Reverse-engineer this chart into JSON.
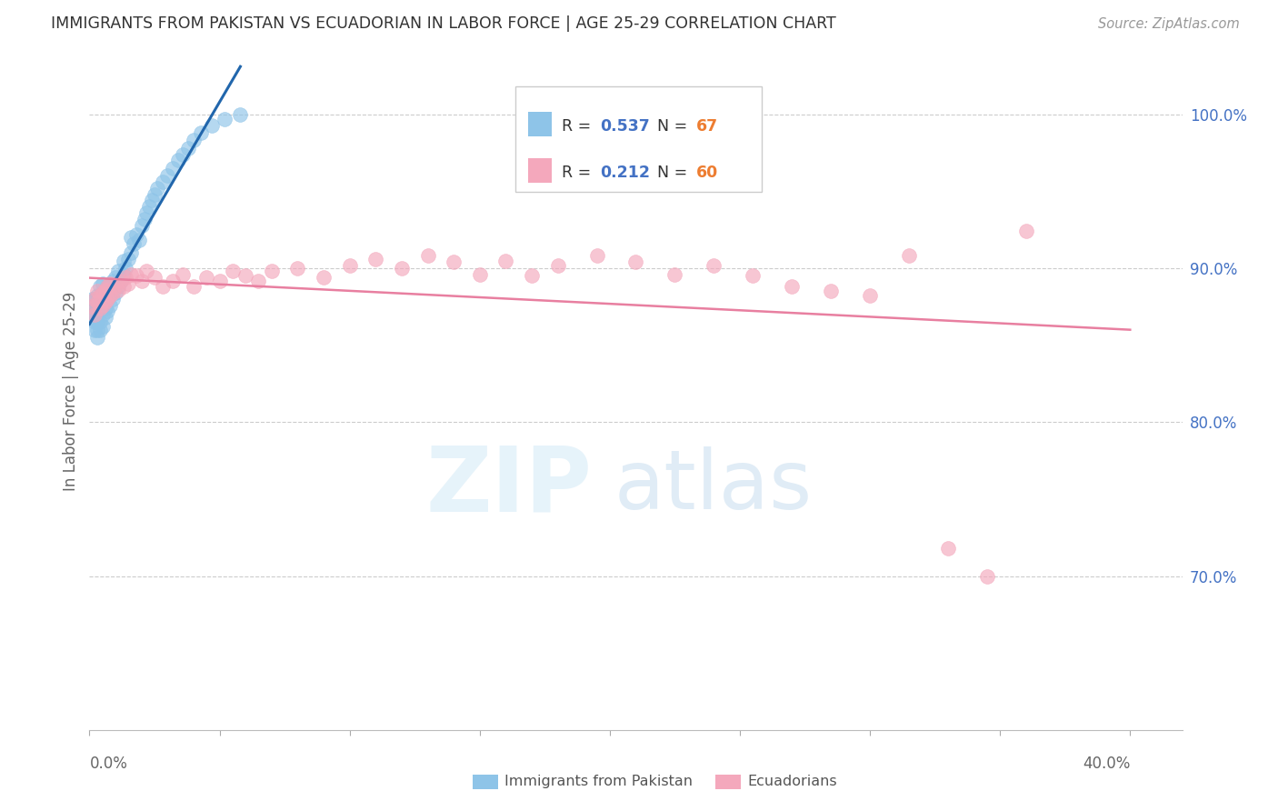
{
  "title": "IMMIGRANTS FROM PAKISTAN VS ECUADORIAN IN LABOR FORCE | AGE 25-29 CORRELATION CHART",
  "source": "Source: ZipAtlas.com",
  "ylabel": "In Labor Force | Age 25-29",
  "right_yticks": [
    0.7,
    0.8,
    0.9,
    1.0
  ],
  "right_yticklabels": [
    "70.0%",
    "80.0%",
    "90.0%",
    "100.0%"
  ],
  "legend_label1": "Immigrants from Pakistan",
  "legend_label2": "Ecuadorians",
  "blue_color": "#8ec4e8",
  "pink_color": "#f4a8bc",
  "blue_line_color": "#2166ac",
  "pink_line_color": "#e87fa0",
  "r_color": "#4472c4",
  "n_color": "#ed7d31",
  "pak_R": "0.537",
  "pak_N": "67",
  "ecu_R": "0.212",
  "ecu_N": "60",
  "xlim": [
    0.0,
    0.42
  ],
  "ylim": [
    0.6,
    1.04
  ],
  "pakistan_x": [
    0.001,
    0.001,
    0.001,
    0.002,
    0.002,
    0.002,
    0.002,
    0.002,
    0.003,
    0.003,
    0.003,
    0.003,
    0.003,
    0.003,
    0.004,
    0.004,
    0.004,
    0.004,
    0.004,
    0.005,
    0.005,
    0.005,
    0.005,
    0.005,
    0.006,
    0.006,
    0.006,
    0.006,
    0.007,
    0.007,
    0.007,
    0.008,
    0.008,
    0.009,
    0.009,
    0.01,
    0.01,
    0.011,
    0.011,
    0.012,
    0.013,
    0.013,
    0.014,
    0.015,
    0.016,
    0.016,
    0.017,
    0.018,
    0.019,
    0.02,
    0.021,
    0.022,
    0.023,
    0.024,
    0.025,
    0.026,
    0.028,
    0.03,
    0.032,
    0.034,
    0.036,
    0.038,
    0.04,
    0.043,
    0.047,
    0.052,
    0.058
  ],
  "pakistan_y": [
    0.87,
    0.875,
    0.88,
    0.86,
    0.865,
    0.87,
    0.875,
    0.88,
    0.855,
    0.86,
    0.865,
    0.87,
    0.875,
    0.882,
    0.86,
    0.865,
    0.875,
    0.88,
    0.888,
    0.862,
    0.87,
    0.876,
    0.882,
    0.89,
    0.868,
    0.874,
    0.88,
    0.886,
    0.872,
    0.88,
    0.888,
    0.876,
    0.886,
    0.88,
    0.892,
    0.884,
    0.894,
    0.888,
    0.898,
    0.892,
    0.896,
    0.905,
    0.9,
    0.906,
    0.91,
    0.92,
    0.916,
    0.922,
    0.918,
    0.928,
    0.932,
    0.936,
    0.94,
    0.944,
    0.948,
    0.952,
    0.956,
    0.96,
    0.965,
    0.97,
    0.974,
    0.978,
    0.983,
    0.988,
    0.993,
    0.997,
    1.0
  ],
  "ecuador_x": [
    0.001,
    0.002,
    0.002,
    0.003,
    0.003,
    0.004,
    0.004,
    0.005,
    0.005,
    0.006,
    0.006,
    0.007,
    0.007,
    0.008,
    0.008,
    0.009,
    0.01,
    0.011,
    0.012,
    0.013,
    0.014,
    0.015,
    0.016,
    0.018,
    0.02,
    0.022,
    0.025,
    0.028,
    0.032,
    0.036,
    0.04,
    0.045,
    0.05,
    0.055,
    0.06,
    0.065,
    0.07,
    0.08,
    0.09,
    0.1,
    0.11,
    0.12,
    0.13,
    0.14,
    0.15,
    0.16,
    0.17,
    0.18,
    0.195,
    0.21,
    0.225,
    0.24,
    0.255,
    0.27,
    0.285,
    0.3,
    0.315,
    0.33,
    0.345,
    0.36
  ],
  "ecuador_y": [
    0.875,
    0.88,
    0.87,
    0.878,
    0.885,
    0.874,
    0.882,
    0.876,
    0.884,
    0.878,
    0.886,
    0.88,
    0.888,
    0.882,
    0.89,
    0.884,
    0.888,
    0.886,
    0.892,
    0.888,
    0.894,
    0.89,
    0.896,
    0.895,
    0.892,
    0.898,
    0.894,
    0.888,
    0.892,
    0.896,
    0.888,
    0.894,
    0.892,
    0.898,
    0.895,
    0.892,
    0.898,
    0.9,
    0.894,
    0.902,
    0.906,
    0.9,
    0.908,
    0.904,
    0.896,
    0.905,
    0.895,
    0.902,
    0.908,
    0.904,
    0.896,
    0.902,
    0.895,
    0.888,
    0.885,
    0.882,
    0.908,
    0.718,
    0.7,
    0.924
  ]
}
